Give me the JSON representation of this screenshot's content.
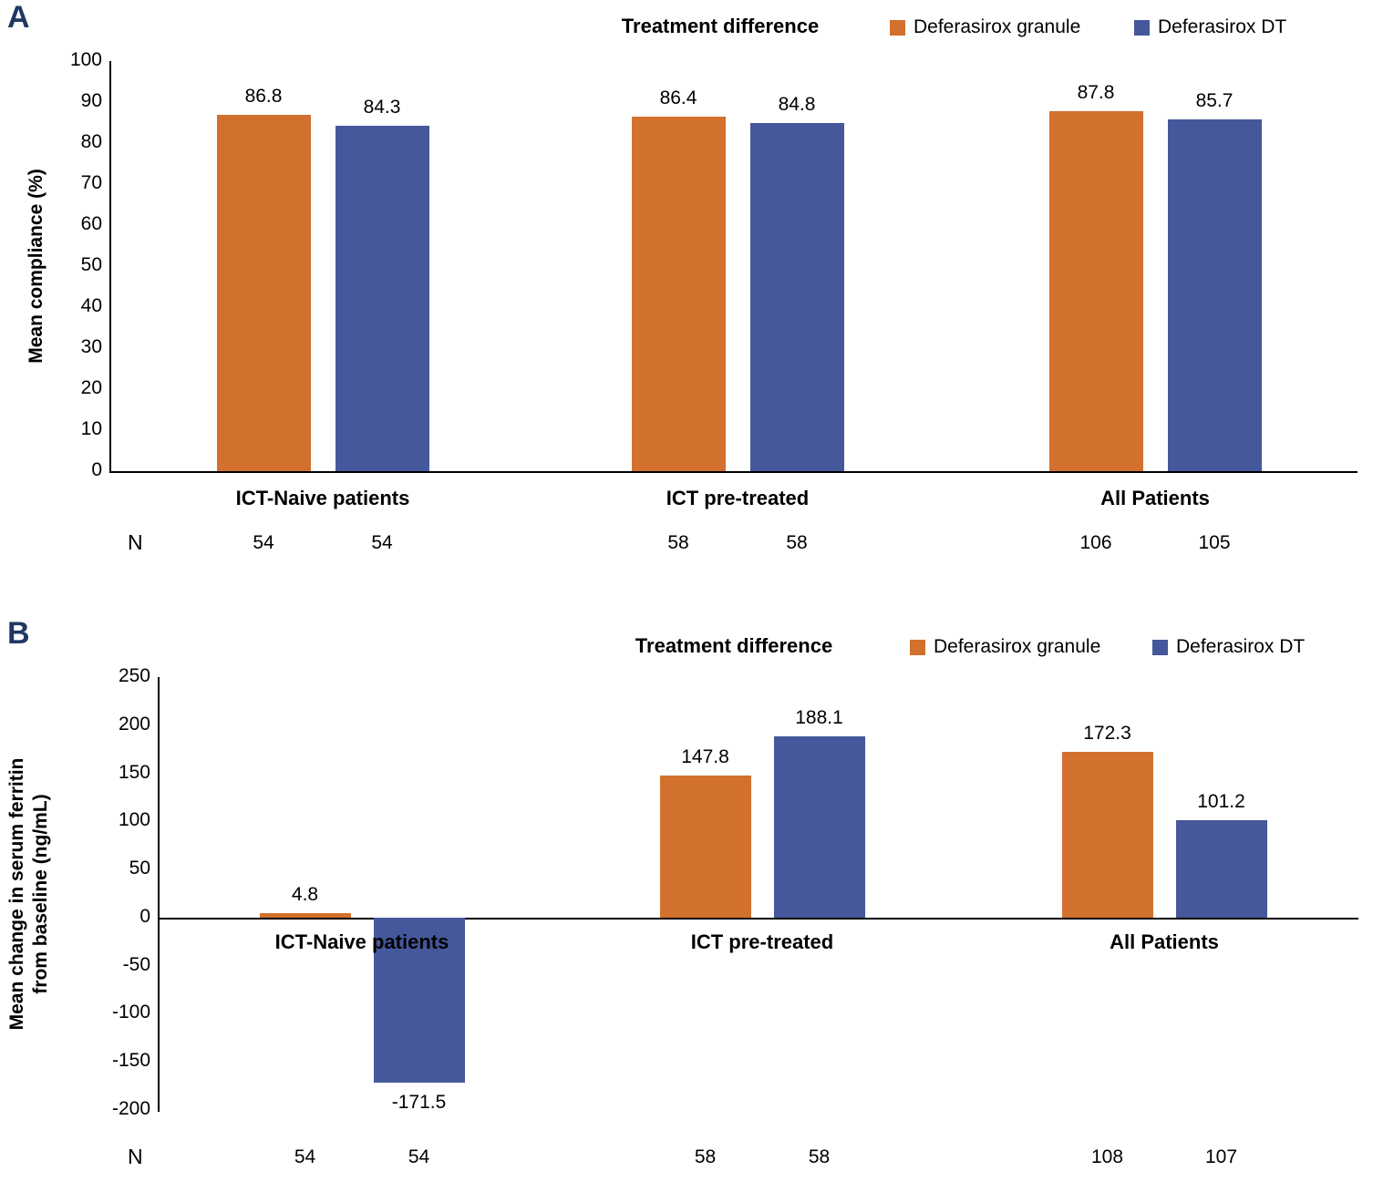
{
  "colors": {
    "granule": "#D2712E",
    "dt": "#45589B",
    "panel_letter": "#1F3864",
    "axis": "#000000"
  },
  "chart_data": [
    {
      "panel": "A",
      "type": "bar",
      "title": "Treatment difference",
      "ylabel": "Mean compliance (%)",
      "ylim": [
        0,
        100
      ],
      "ytick_step": 10,
      "legend_position": "top",
      "grid": false,
      "n_label": "N",
      "categories": [
        "ICT-Naive patients",
        "ICT pre-treated",
        "All Patients"
      ],
      "series": [
        {
          "name": "Deferasirox granule",
          "color": "#D2712E",
          "values": [
            86.8,
            86.4,
            87.8
          ],
          "n": [
            54,
            58,
            106
          ]
        },
        {
          "name": "Deferasirox DT",
          "color": "#45589B",
          "values": [
            84.3,
            84.8,
            85.7
          ],
          "n": [
            54,
            58,
            105
          ]
        }
      ]
    },
    {
      "panel": "B",
      "type": "bar",
      "title": "Treatment difference",
      "ylabel": "Mean change in serum ferritin\nfrom baseline (ng/mL)",
      "ylim": [
        -200,
        250
      ],
      "ytick_step": 50,
      "legend_position": "top",
      "grid": false,
      "n_label": "N",
      "categories": [
        "ICT-Naive patients",
        "ICT pre-treated",
        "All Patients"
      ],
      "series": [
        {
          "name": "Deferasirox granule",
          "color": "#D2712E",
          "values": [
            4.8,
            147.8,
            172.3
          ],
          "n": [
            54,
            58,
            108
          ]
        },
        {
          "name": "Deferasirox DT",
          "color": "#45589B",
          "values": [
            -171.5,
            188.1,
            101.2
          ],
          "n": [
            54,
            58,
            107
          ]
        }
      ]
    }
  ]
}
